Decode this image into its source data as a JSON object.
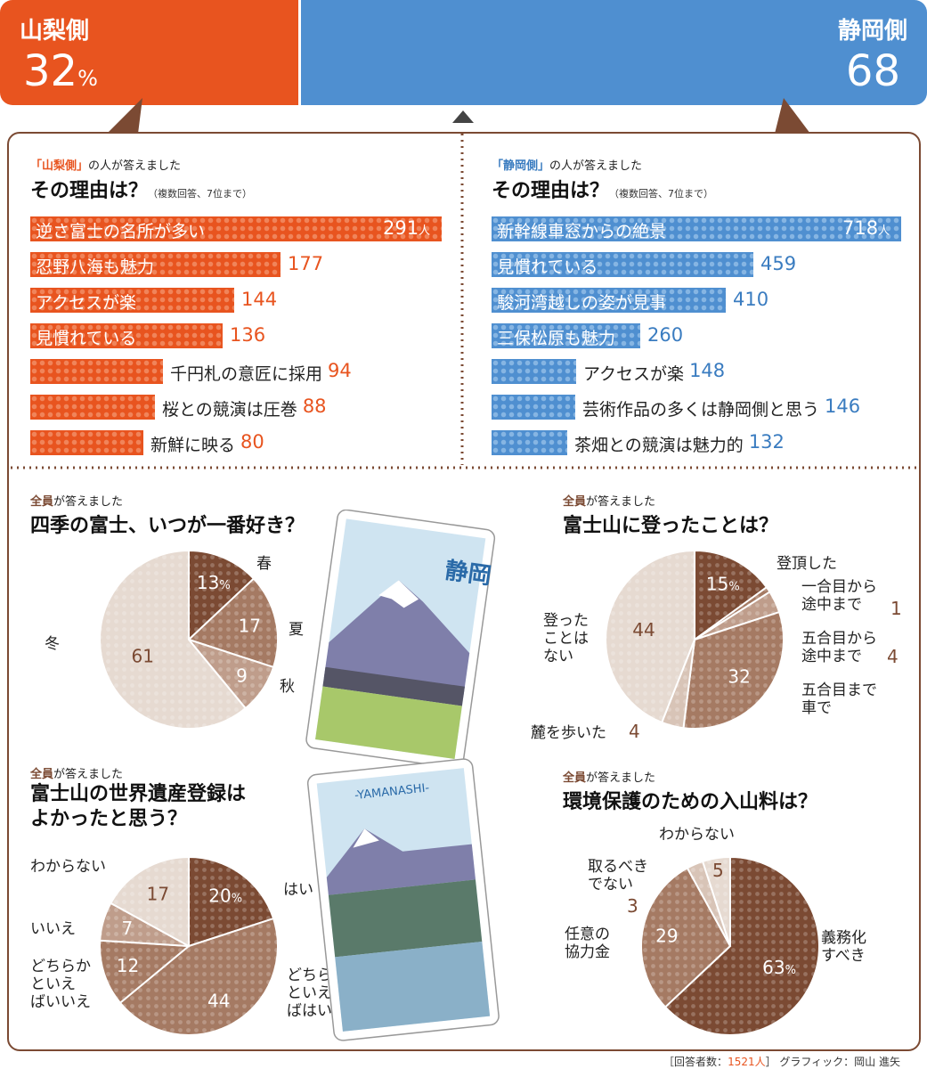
{
  "banner": {
    "left_label": "山梨側",
    "left_value": "32",
    "left_unit": "%",
    "right_label": "静岡側",
    "right_value": "68",
    "colors": {
      "yamanashi": "#e8541f",
      "shizuoka": "#4f8fd0"
    }
  },
  "yamanashi_reasons": {
    "sub_prefix": "「山梨側」",
    "sub_suffix": "の人が答えました",
    "heading": "その理由は？",
    "note": "（複数回答、7位まで）",
    "unit": "人"
  },
  "shizuoka_reasons": {
    "sub_prefix": "「静岡側」",
    "sub_suffix": "の人が答えました",
    "heading": "その理由は？",
    "note": "（複数回答、7位まで）",
    "unit": "人"
  },
  "pies": {
    "sub_prefix": "全員",
    "sub_suffix": "が答えました",
    "season_title": "四季の富士、いつが一番好き？",
    "climb_title": "富士山に登ったことは？",
    "heritage_title_1": "富士山の世界遺産登録は",
    "heritage_title_2": "よかったと思う？",
    "fee_title": "環境保護のための入山料は？"
  },
  "cards": {
    "shizuoka_text": "静岡",
    "yamanashi_text": "-YAMANASHI-"
  },
  "footer": {
    "text": "［回答者数：",
    "count": "1521人",
    "text2": "］ グラフィック：岡山 進矢"
  },
  "chart_data": [
    {
      "type": "bar",
      "title": "その理由は？",
      "categories": [
        "逆さ富士の名所が多い",
        "忍野八海も魅力",
        "アクセスが楽",
        "見慣れている",
        "千円札の意匠に採用",
        "桜との競演は圧巻",
        "新鮮に映る"
      ],
      "values": [
        291,
        177,
        144,
        136,
        94,
        88,
        80
      ],
      "value_labels": [
        "291",
        "177",
        "144",
        "136",
        "94",
        "88",
        "80"
      ],
      "xlim": [
        0,
        291
      ]
    },
    {
      "type": "bar",
      "title": "その理由は？",
      "categories": [
        "新幹線車窓からの絶景",
        "見慣れている",
        "駿河湾越しの姿が見事",
        "三保松原も魅力",
        "アクセスが楽",
        "芸術作品の多くは静岡側と思う",
        "茶畑との競演は魅力的"
      ],
      "values": [
        718,
        459,
        410,
        260,
        148,
        146,
        132
      ],
      "value_labels": [
        "718",
        "459",
        "410",
        "260",
        "148",
        "146",
        "132"
      ],
      "xlim": [
        0,
        718
      ]
    },
    {
      "type": "pie",
      "title": "四季の富士、いつが一番好き？",
      "categories": [
        "春",
        "夏",
        "秋",
        "冬"
      ],
      "values": [
        13,
        17,
        9,
        61
      ],
      "value_labels": [
        "13",
        "17",
        "9",
        "61"
      ]
    },
    {
      "type": "pie",
      "title": "富士山に登ったことは？",
      "categories": [
        "登頂した",
        "一合目から途中まで",
        "五合目から途中まで",
        "五合目まで車で",
        "麓を歩いた",
        "登ったことはない"
      ],
      "values": [
        15,
        1,
        4,
        32,
        4,
        44
      ],
      "value_labels": [
        "15",
        "1",
        "4",
        "32",
        "4",
        "44"
      ]
    },
    {
      "type": "pie",
      "title": "富士山の世界遺産登録はよかったと思う？",
      "categories": [
        "はい",
        "どちらかといえばはい",
        "どちらかといえばいいえ",
        "いいえ",
        "わからない"
      ],
      "values": [
        20,
        44,
        12,
        7,
        17
      ],
      "value_labels": [
        "20",
        "44",
        "12",
        "7",
        "17"
      ]
    },
    {
      "type": "pie",
      "title": "環境保護のための入山料は？",
      "categories": [
        "義務化すべき",
        "任意の協力金",
        "取るべきでない",
        "わからない"
      ],
      "values": [
        63,
        29,
        3,
        5
      ],
      "value_labels": [
        "63",
        "29",
        "3",
        "5"
      ]
    }
  ]
}
